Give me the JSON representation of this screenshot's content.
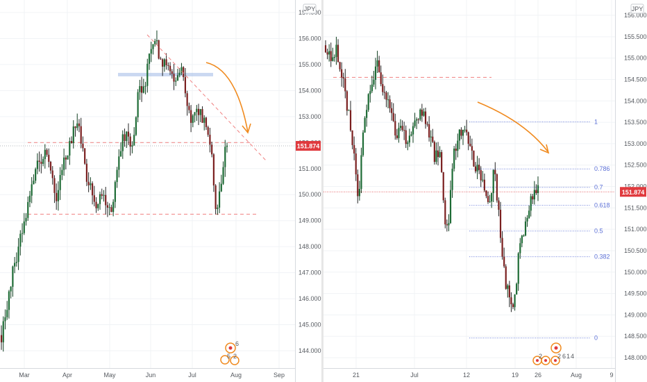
{
  "chart_data": [
    {
      "type": "candlestick",
      "currency_label": "JPY",
      "price_tag": "151.874",
      "price_tag_color": "#e03a3e",
      "last_price": 151.874,
      "ylim": [
        144.0,
        157.3
      ],
      "y_ticks": [
        "157.000",
        "156.000",
        "155.000",
        "154.000",
        "153.000",
        "152.000",
        "151.000",
        "150.000",
        "149.000",
        "148.000",
        "147.000",
        "146.000",
        "145.000",
        "144.000"
      ],
      "x_ticks": [
        "Mar",
        "Apr",
        "May",
        "Jun",
        "Jul",
        "Aug",
        "Sep"
      ],
      "candles_count": 120,
      "candles_path": [
        [
          0,
          144.6
        ],
        [
          8,
          147.2
        ],
        [
          16,
          149.2
        ],
        [
          24,
          151.3
        ],
        [
          30,
          151.7
        ],
        [
          36,
          150.0
        ],
        [
          42,
          151.5
        ],
        [
          50,
          152.9
        ],
        [
          56,
          150.6
        ],
        [
          62,
          149.6
        ],
        [
          66,
          150.2
        ],
        [
          72,
          149.3
        ],
        [
          80,
          152.4
        ],
        [
          86,
          151.7
        ],
        [
          90,
          154.0
        ],
        [
          94,
          154.2
        ],
        [
          100,
          156.1
        ],
        [
          104,
          155.3
        ],
        [
          110,
          154.9
        ],
        [
          114,
          154.2
        ],
        [
          118,
          154.9
        ],
        [
          124,
          152.8
        ],
        [
          128,
          153.2
        ],
        [
          134,
          152.8
        ],
        [
          138,
          151.5
        ],
        [
          140,
          149.8
        ],
        [
          142,
          149.3
        ],
        [
          146,
          151.5
        ],
        [
          148,
          152.0
        ]
      ],
      "horizontal_levels": [
        {
          "value": 152.0,
          "style": "dashed",
          "color": "#f08080"
        },
        {
          "value": 149.25,
          "style": "dashed",
          "color": "#f08080"
        },
        {
          "value": 154.6,
          "style": "zone",
          "color": "#9fb8e6"
        }
      ],
      "price_line": {
        "value": 151.874,
        "color": "#c8ccd2"
      },
      "trendline": {
        "x": [
          100,
          160
        ],
        "y": [
          156.1,
          151.5
        ],
        "color": "#f08080",
        "style": "dashed"
      },
      "arrow": {
        "color": "#f08a1e"
      },
      "event_markers": [
        "6",
        "5",
        "2"
      ]
    },
    {
      "type": "candlestick",
      "currency_label": "JPY",
      "price_tag": "151.874",
      "price_tag_color": "#e03a3e",
      "last_price": 151.874,
      "ylim": [
        147.8,
        156.2
      ],
      "y_ticks": [
        "156.000",
        "155.500",
        "155.000",
        "154.500",
        "154.000",
        "153.500",
        "153.000",
        "152.500",
        "152.000",
        "151.500",
        "151.000",
        "150.500",
        "150.000",
        "149.500",
        "149.000",
        "148.500",
        "148.000"
      ],
      "x_ticks": [
        "21",
        "Jul",
        "12",
        "19",
        "26",
        "Aug",
        "9"
      ],
      "candles_count": 120,
      "candles_path": [
        [
          0,
          155.3
        ],
        [
          4,
          155.0
        ],
        [
          8,
          155.2
        ],
        [
          12,
          154.6
        ],
        [
          18,
          153.5
        ],
        [
          22,
          152.5
        ],
        [
          24,
          151.6
        ],
        [
          28,
          153.6
        ],
        [
          34,
          154.4
        ],
        [
          38,
          155.0
        ],
        [
          42,
          154.2
        ],
        [
          46,
          154.0
        ],
        [
          52,
          153.2
        ],
        [
          56,
          153.5
        ],
        [
          60,
          153.0
        ],
        [
          64,
          153.5
        ],
        [
          72,
          153.8
        ],
        [
          76,
          153.3
        ],
        [
          80,
          152.7
        ],
        [
          84,
          152.9
        ],
        [
          88,
          151.2
        ],
        [
          90,
          151.0
        ],
        [
          94,
          152.8
        ],
        [
          98,
          153.2
        ],
        [
          104,
          153.3
        ],
        [
          106,
          152.8
        ],
        [
          110,
          152.5
        ],
        [
          116,
          152.1
        ],
        [
          120,
          151.6
        ],
        [
          124,
          152.4
        ],
        [
          128,
          151.0
        ],
        [
          132,
          149.8
        ],
        [
          136,
          149.2
        ],
        [
          140,
          149.5
        ],
        [
          142,
          150.6
        ],
        [
          146,
          150.9
        ],
        [
          150,
          151.6
        ],
        [
          154,
          151.9
        ],
        [
          156,
          152.0
        ]
      ],
      "horizontal_levels": [
        {
          "value": 154.55,
          "style": "dashed",
          "color": "#f08080"
        }
      ],
      "price_line": {
        "value": 151.874,
        "color": "#e03a3e"
      },
      "fibonacci": {
        "color": "#5b6fd6",
        "levels": [
          {
            "ratio": "1",
            "value": 153.51
          },
          {
            "ratio": "0.786",
            "value": 152.41
          },
          {
            "ratio": "0.7",
            "value": 151.98
          },
          {
            "ratio": "0.618",
            "value": 151.56
          },
          {
            "ratio": "0.5",
            "value": 150.96
          },
          {
            "ratio": "0.382",
            "value": 150.36
          },
          {
            "ratio": "0",
            "value": 148.46
          }
        ]
      },
      "arrow": {
        "color": "#f08a1e"
      },
      "event_markers": [
        "2",
        "2",
        "6",
        "1",
        "4"
      ]
    }
  ]
}
